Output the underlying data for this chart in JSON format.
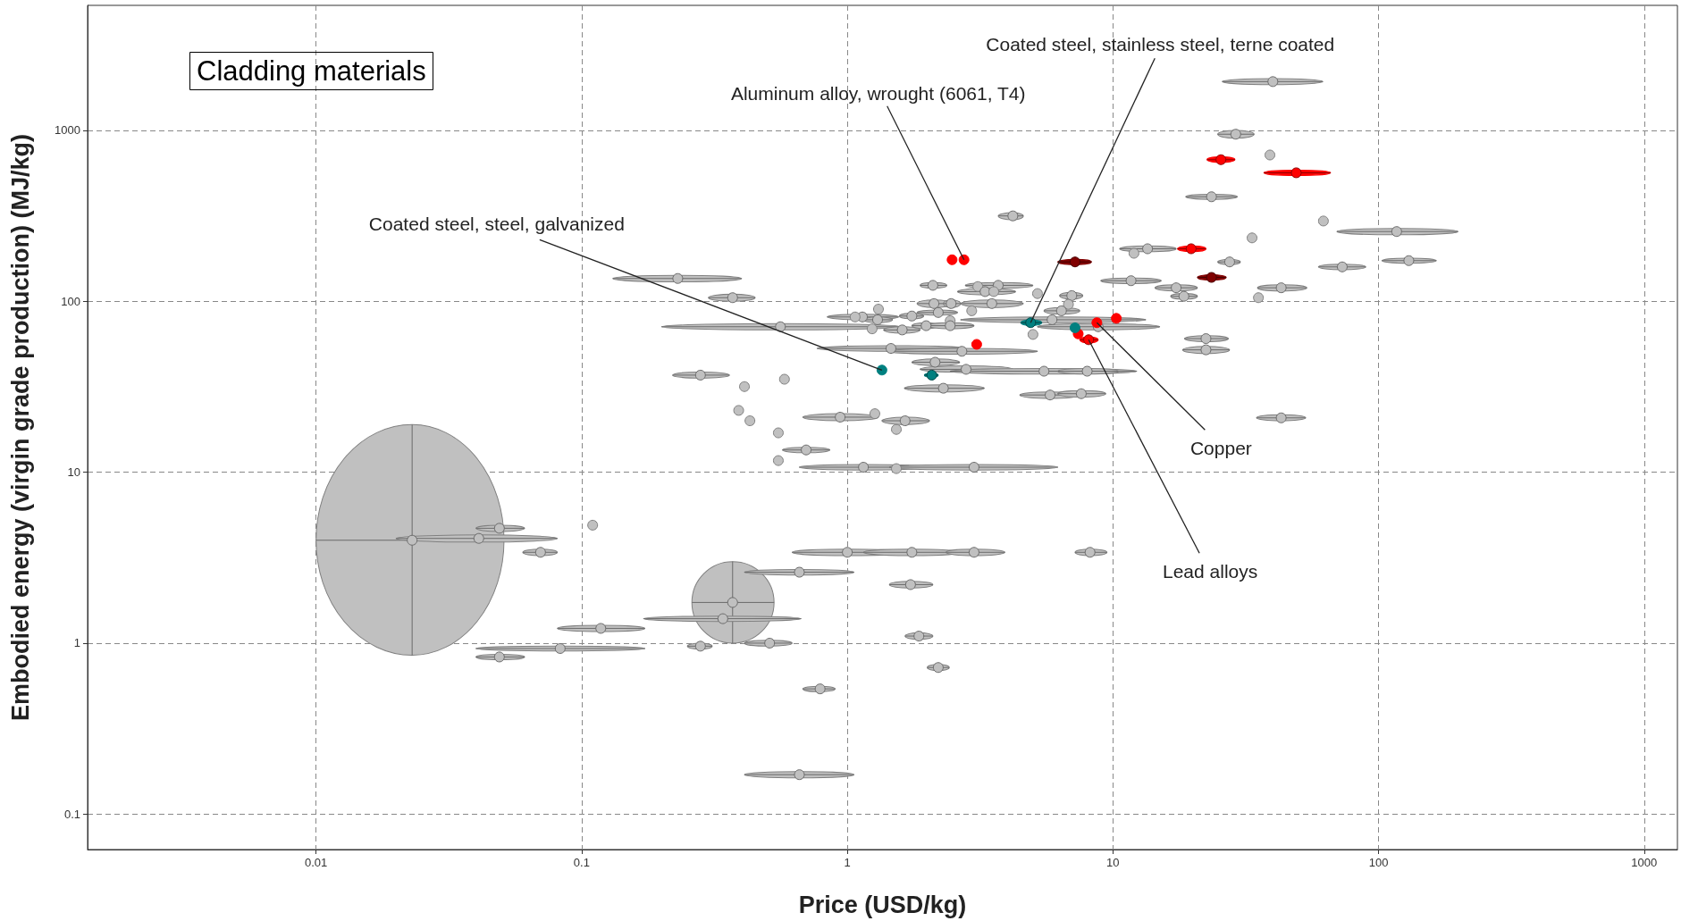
{
  "chart_data": {
    "type": "scatter",
    "title": "Cladding materials",
    "xlabel": "Price (USD/kg)",
    "ylabel": "Embodied energy (virgin grade production) (MJ/kg)",
    "log": "xy",
    "grid": true,
    "xlim": [
      0.00138,
      1334
    ],
    "xticks": [
      0.01,
      0.1,
      1,
      10,
      100,
      1000
    ],
    "ylim": [
      0.062,
      5390
    ],
    "yticks": [
      0.1,
      1,
      10,
      100,
      1000
    ],
    "series": [
      {
        "color": "#c0c0c0",
        "x": [
          0.023,
          0.37,
          0.041,
          0.049,
          0.07,
          0.11,
          0.083,
          0.049,
          0.118,
          0.34,
          0.28,
          0.51,
          0.79,
          0.66,
          1.0,
          1.75,
          3.0,
          8.2,
          0.66,
          1.73,
          1.86,
          2.2,
          0.94,
          1.65,
          1.53,
          0.43,
          0.55,
          0.7,
          0.55,
          1.27,
          1.15,
          3.0,
          1.53,
          0.23,
          0.37,
          0.56,
          0.28,
          0.41,
          0.58,
          0.39,
          1.46,
          2.7,
          2.14,
          2.8,
          5.5,
          8.0,
          2.3,
          5.8,
          7.6,
          5.0,
          2.1,
          3.7,
          3.1,
          3.3,
          3.56,
          5.2,
          7.0,
          6.8,
          6.4,
          2.12,
          3.5,
          2.46,
          2.94,
          1.31,
          1.14,
          1.07,
          1.3,
          1.75,
          2.2,
          2.44,
          1.24,
          1.61,
          1.98,
          2.44,
          5.9,
          8.8,
          40,
          29,
          39,
          23.5,
          62,
          117,
          33.4,
          13.5,
          12.0,
          27.5,
          73,
          130,
          11.7,
          17.3,
          18.5,
          43,
          35.3,
          22.4,
          22.4,
          43,
          4.2
        ],
        "values": [
          4.0,
          1.73,
          4.1,
          4.7,
          3.4,
          4.9,
          0.93,
          0.83,
          1.22,
          1.39,
          0.96,
          1.0,
          0.54,
          0.17,
          3.4,
          3.4,
          3.4,
          3.4,
          2.6,
          2.2,
          1.1,
          0.72,
          21,
          20,
          17.8,
          20,
          17,
          13.5,
          11.7,
          22,
          10.7,
          10.7,
          10.5,
          136,
          105,
          71,
          37,
          31.7,
          35,
          23,
          53,
          51,
          44,
          40,
          39,
          39,
          31,
          28.3,
          28.8,
          64,
          124,
          124,
          122,
          114,
          114,
          111,
          108,
          96,
          88,
          97,
          97,
          97,
          88,
          90,
          81,
          81,
          78,
          82,
          86,
          77,
          69,
          68,
          72,
          72,
          78,
          71,
          1930,
          950,
          718,
          409,
          295,
          256,
          235,
          203,
          191,
          170,
          159,
          173,
          132,
          120,
          107,
          120,
          105,
          60.5,
          52,
          20.8,
          316
        ],
        "xerrors": [
          [
            0.01,
            0.051
          ],
          [
            0.26,
            0.53
          ],
          [
            0.02,
            0.081
          ],
          [
            0.04,
            0.061
          ],
          [
            0.06,
            0.081
          ],
          null,
          [
            0.04,
            0.173
          ],
          [
            0.04,
            0.061
          ],
          [
            0.081,
            0.173
          ],
          [
            0.171,
            0.67
          ],
          [
            0.25,
            0.31
          ],
          [
            0.41,
            0.62
          ],
          [
            0.68,
            0.9
          ],
          [
            0.41,
            1.06
          ],
          [
            0.62,
            1.68
          ],
          [
            1.15,
            2.67
          ],
          [
            2.35,
            3.92
          ],
          [
            7.2,
            9.5
          ],
          [
            0.41,
            1.06
          ],
          [
            1.44,
            2.1
          ],
          [
            1.65,
            2.1
          ],
          [
            2.0,
            2.42
          ],
          [
            0.68,
            1.31
          ],
          [
            1.35,
            2.04
          ],
          null,
          null,
          null,
          [
            0.57,
            0.86
          ],
          null,
          null,
          [
            0.66,
            2.0
          ],
          [
            1.44,
            6.2
          ],
          null,
          [
            0.131,
            0.4
          ],
          [
            0.3,
            0.45
          ],
          [
            0.2,
            1.58
          ],
          [
            0.22,
            0.36
          ],
          null,
          null,
          null,
          [
            0.77,
            2.78
          ],
          [
            1.41,
            5.2
          ],
          [
            1.75,
            2.65
          ],
          [
            1.88,
            4.2
          ],
          [
            2.44,
            12.3
          ],
          [
            6.2,
            10.5
          ],
          [
            1.64,
            3.28
          ],
          [
            4.46,
            7.5
          ],
          [
            6.2,
            9.4
          ],
          null,
          [
            1.88,
            2.37
          ],
          [
            2.78,
            5.0
          ],
          null,
          [
            2.6,
            4.3
          ],
          null,
          null,
          [
            6.3,
            7.7
          ],
          null,
          [
            5.5,
            7.5
          ],
          [
            1.83,
            2.48
          ],
          [
            2.67,
            4.6
          ],
          [
            2.3,
            2.67
          ],
          null,
          null,
          [
            0.84,
            1.56
          ],
          null,
          [
            1.15,
            1.48
          ],
          [
            1.57,
            1.94
          ],
          [
            1.83,
            2.6
          ],
          null,
          null,
          [
            1.37,
            1.88
          ],
          [
            1.75,
            2.2
          ],
          [
            2.0,
            3.0
          ],
          [
            2.67,
            13.3
          ],
          [
            5.2,
            15
          ],
          [
            25.8,
            61.7
          ],
          [
            24.8,
            34
          ],
          null,
          [
            18.8,
            29.4
          ],
          null,
          [
            69.7,
            199
          ],
          null,
          [
            10.6,
            17.3
          ],
          null,
          [
            24.8,
            30.2
          ],
          [
            59.4,
            89.5
          ],
          [
            103,
            165
          ],
          [
            9.0,
            15.2
          ],
          [
            14.4,
            20.8
          ],
          [
            16.5,
            20.8
          ],
          [
            35,
            53.7
          ],
          null,
          [
            18.6,
            27.2
          ],
          [
            18.3,
            27.5
          ],
          [
            34.7,
            53.2
          ],
          [
            3.7,
            4.6
          ]
        ],
        "errors": [
          [
            0.85,
            19
          ],
          [
            1.0,
            3.0
          ],
          [
            3.9,
            4.3
          ],
          [
            4.5,
            4.9
          ],
          [
            3.25,
            3.55
          ],
          null,
          [
            0.9,
            0.96
          ],
          [
            0.8,
            0.86
          ],
          [
            1.17,
            1.27
          ],
          [
            1.34,
            1.44
          ],
          [
            0.92,
            1.0
          ],
          [
            0.96,
            1.04
          ],
          [
            0.52,
            0.56
          ],
          [
            0.163,
            0.177
          ],
          [
            3.25,
            3.55
          ],
          [
            3.25,
            3.55
          ],
          [
            3.25,
            3.55
          ],
          [
            3.25,
            3.55
          ],
          [
            2.5,
            2.7
          ],
          [
            2.1,
            2.3
          ],
          [
            1.05,
            1.15
          ],
          [
            0.69,
            0.75
          ],
          [
            20,
            22
          ],
          [
            19,
            21
          ],
          null,
          null,
          null,
          [
            13,
            14
          ],
          null,
          null,
          [
            10.3,
            11.1
          ],
          [
            10.3,
            11.1
          ],
          null,
          [
            130,
            142
          ],
          [
            100,
            110
          ],
          [
            68,
            74
          ],
          [
            35.5,
            38.5
          ],
          null,
          null,
          null,
          [
            51,
            55
          ],
          [
            49,
            53
          ],
          [
            42,
            46
          ],
          [
            38.5,
            42
          ],
          [
            37.5,
            40.5
          ],
          [
            37.5,
            40.5
          ],
          [
            29.5,
            32.5
          ],
          [
            27,
            29.5
          ],
          [
            27.5,
            30
          ],
          null,
          [
            119,
            129
          ],
          [
            119,
            129
          ],
          null,
          [
            109,
            119
          ],
          null,
          null,
          [
            103,
            113
          ],
          null,
          [
            84,
            92
          ],
          [
            92,
            102
          ],
          [
            92,
            102
          ],
          [
            92,
            102
          ],
          null,
          null,
          [
            78,
            84
          ],
          null,
          [
            75,
            81
          ],
          [
            79,
            85
          ],
          [
            83,
            89
          ],
          null,
          null,
          [
            65,
            71
          ],
          [
            69,
            75
          ],
          [
            69,
            75
          ],
          [
            75,
            81
          ],
          [
            68,
            74
          ],
          [
            1850,
            2010
          ],
          [
            900,
            1000
          ],
          null,
          [
            395,
            423
          ],
          null,
          [
            245,
            267
          ],
          null,
          [
            195,
            211
          ],
          null,
          [
            164,
            176
          ],
          [
            153,
            165
          ],
          [
            167,
            179
          ],
          [
            127,
            137
          ],
          [
            115,
            125
          ],
          [
            103,
            111
          ],
          [
            115,
            125
          ],
          null,
          [
            58,
            63
          ],
          [
            49.5,
            54.5
          ],
          [
            20,
            21.7
          ],
          [
            300,
            330
          ]
        ]
      },
      {
        "color": "#ff0000",
        "x": [
          2.48,
          2.75,
          3.07,
          8.7,
          10.3,
          7.4,
          8.1,
          25.5,
          49,
          19.7
        ],
        "values": [
          175,
          175,
          56,
          75,
          79.5,
          64.5,
          59.6,
          674,
          565,
          203
        ],
        "xerrors": [
          null,
          null,
          null,
          null,
          null,
          null,
          [
            7.5,
            8.8
          ],
          [
            22.6,
            28.8
          ],
          [
            37,
            66
          ],
          [
            17.5,
            22.4
          ]
        ],
        "errors": [
          null,
          null,
          null,
          null,
          null,
          null,
          [
            57,
            62
          ],
          [
            650,
            700
          ],
          [
            545,
            585
          ],
          [
            195,
            211
          ]
        ]
      },
      {
        "color": "#800000",
        "x": [
          7.2,
          23.5
        ],
        "values": [
          170,
          138
        ],
        "xerrors": [
          [
            6.2,
            8.3
          ],
          [
            20.8,
            26.7
          ]
        ],
        "errors": [
          [
            164,
            176
          ],
          [
            133,
            143
          ]
        ]
      },
      {
        "color": "#008080",
        "x": [
          1.35,
          2.08,
          4.9,
          7.2
        ],
        "values": [
          39.6,
          37,
          75,
          70
        ],
        "xerrors": [
          null,
          [
            1.95,
            2.2
          ],
          [
            4.5,
            5.4
          ],
          null
        ],
        "errors": [
          null,
          [
            36,
            38
          ],
          [
            72,
            78
          ],
          null
        ]
      }
    ],
    "annotations": [
      {
        "text": "Coated steel, steel, galvanized",
        "x": 1.35,
        "y": 39.6
      },
      {
        "text": "Aluminum alloy, wrought (6061, T4)",
        "x": 2.75,
        "y": 175
      },
      {
        "text": "Coated steel, stainless steel, terne coated",
        "x": 4.9,
        "y": 75
      },
      {
        "text": "Copper",
        "x": 8.7,
        "y": 75
      },
      {
        "text": "Lead alloys",
        "x": 8.1,
        "y": 59.6
      }
    ]
  }
}
